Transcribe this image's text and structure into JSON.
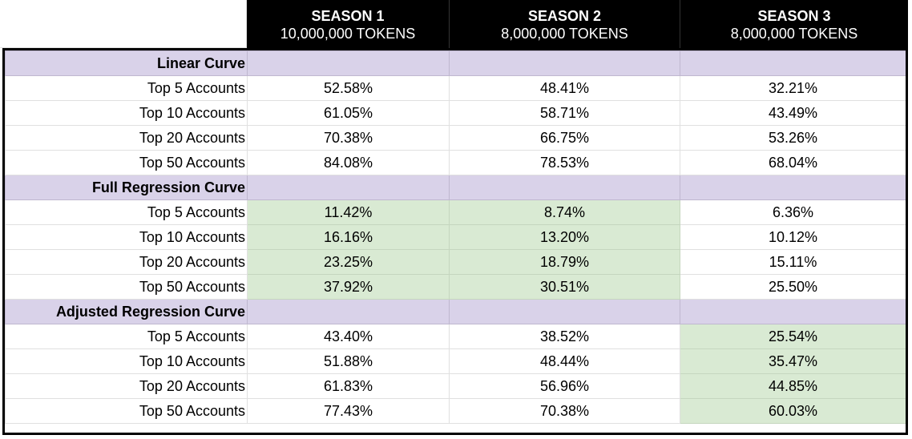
{
  "columns": [
    {
      "title": "SEASON 1",
      "subtitle": "10,000,000 TOKENS"
    },
    {
      "title": "SEASON 2",
      "subtitle": "8,000,000 TOKENS"
    },
    {
      "title": "SEASON 3",
      "subtitle": "8,000,000 TOKENS"
    }
  ],
  "colors": {
    "section": "#d9d2e9",
    "highlight": "#d9ead3",
    "header": "#000000"
  },
  "sections": [
    {
      "title": "Linear Curve",
      "highlight_column": null,
      "rows": [
        {
          "label": "Top 5 Accounts",
          "values": [
            "52.58%",
            "48.41%",
            "32.21%"
          ]
        },
        {
          "label": "Top 10 Accounts",
          "values": [
            "61.05%",
            "58.71%",
            "43.49%"
          ]
        },
        {
          "label": "Top 20 Accounts",
          "values": [
            "70.38%",
            "66.75%",
            "53.26%"
          ]
        },
        {
          "label": "Top 50 Accounts",
          "values": [
            "84.08%",
            "78.53%",
            "68.04%"
          ]
        }
      ]
    },
    {
      "title": "Full Regression Curve",
      "highlight_columns": [
        0,
        1
      ],
      "rows": [
        {
          "label": "Top 5 Accounts",
          "values": [
            "11.42%",
            "8.74%",
            "6.36%"
          ]
        },
        {
          "label": "Top 10 Accounts",
          "values": [
            "16.16%",
            "13.20%",
            "10.12%"
          ]
        },
        {
          "label": "Top 20 Accounts",
          "values": [
            "23.25%",
            "18.79%",
            "15.11%"
          ]
        },
        {
          "label": "Top 50 Accounts",
          "values": [
            "37.92%",
            "30.51%",
            "25.50%"
          ]
        }
      ]
    },
    {
      "title": "Adjusted Regression Curve",
      "highlight_columns": [
        2
      ],
      "rows": [
        {
          "label": "Top 5 Accounts",
          "values": [
            "43.40%",
            "38.52%",
            "25.54%"
          ]
        },
        {
          "label": "Top 10 Accounts",
          "values": [
            "51.88%",
            "48.44%",
            "35.47%"
          ]
        },
        {
          "label": "Top 20 Accounts",
          "values": [
            "61.83%",
            "56.96%",
            "44.85%"
          ]
        },
        {
          "label": "Top 50 Accounts",
          "values": [
            "77.43%",
            "70.38%",
            "60.03%"
          ]
        }
      ]
    }
  ]
}
